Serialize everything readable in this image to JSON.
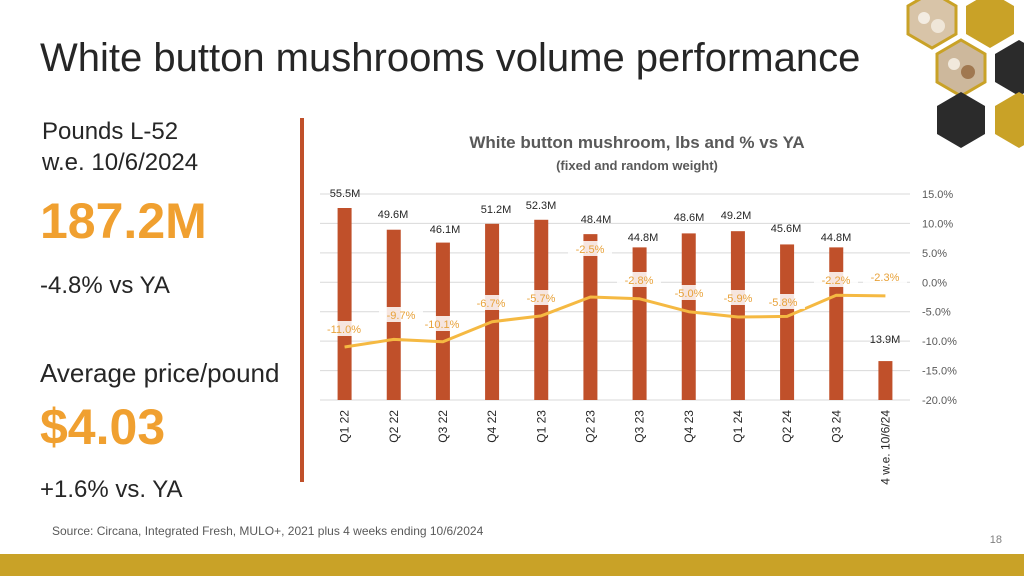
{
  "slide": {
    "title": "White button mushrooms volume performance",
    "kpi": {
      "label1": "Pounds L-52",
      "label2": "w.e. 10/6/2024",
      "volume": "187.2M",
      "volume_change": "-4.8% vs YA",
      "price_label": "Average price/pound",
      "price": "$4.03",
      "price_change": "+1.6% vs. YA"
    },
    "source": "Source: Circana, Integrated Fresh, MULO+, 2021 plus 4 weeks ending 10/6/2024",
    "page_number": "18"
  },
  "colors": {
    "bar": "#c0502a",
    "line": "#f5b942",
    "accent": "#f0a030",
    "footer": "#c9a227",
    "hex": "#2b2b2b",
    "hex_alt": "#c9a227"
  },
  "chart_data": {
    "type": "bar",
    "title": "White button mushroom, lbs and % vs YA",
    "subtitle": "(fixed and random weight)",
    "categories": [
      "Q1 22",
      "Q2 22",
      "Q3 22",
      "Q4 22",
      "Q1 23",
      "Q2 23",
      "Q3 23",
      "Q4 23",
      "Q1 24",
      "Q2 24",
      "Q3 24",
      "4 w.e. 10/6/24"
    ],
    "series": [
      {
        "values": [
          55.5,
          49.6,
          46.1,
          51.2,
          52.3,
          48.4,
          44.8,
          48.6,
          49.2,
          45.6,
          44.8,
          13.9
        ],
        "labels": [
          "55.5M",
          "49.6M",
          "46.1M",
          "51.2M",
          "52.3M",
          "48.4M",
          "44.8M",
          "48.6M",
          "49.2M",
          "45.6M",
          "44.8M",
          "13.9M"
        ]
      },
      {
        "type": "line",
        "axis": "right",
        "values": [
          -11.0,
          -9.7,
          -10.1,
          -6.7,
          -5.7,
          -2.5,
          -2.8,
          -5.0,
          -5.9,
          -5.8,
          -2.2,
          -2.3
        ],
        "labels": [
          "-11.0%",
          "-9.7%",
          "-10.1%",
          "-6.7%",
          "-5.7%",
          "-2.5%",
          "-2.8%",
          "-5.0%",
          "-5.9%",
          "-5.8%",
          "-2.2%",
          "-2.3%"
        ]
      }
    ],
    "y2ticks": [
      "15.0%",
      "10.0%",
      "5.0%",
      "0.0%",
      "-5.0%",
      "-10.0%",
      "-15.0%",
      "-20.0%"
    ],
    "y2lim": [
      -20,
      15
    ],
    "grid": true
  }
}
